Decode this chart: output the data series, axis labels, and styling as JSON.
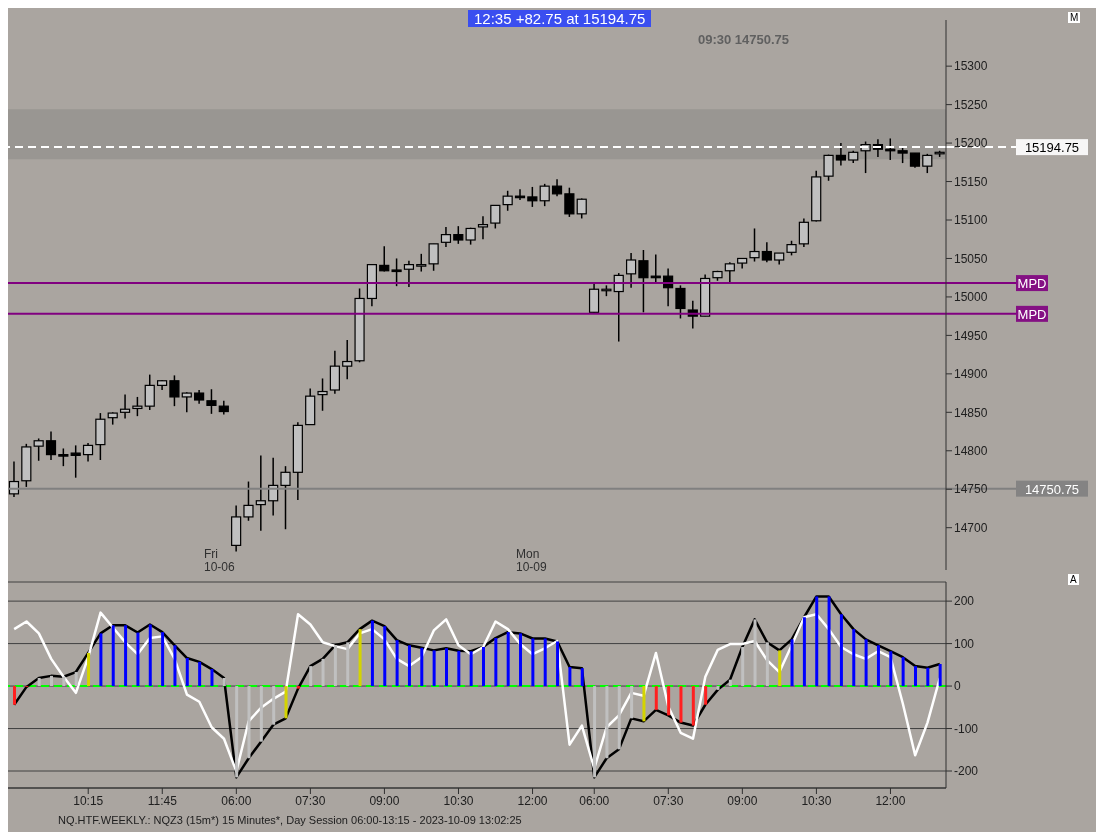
{
  "chart_data": [
    {
      "type": "candlestick",
      "categories": [
        null,
        null,
        null,
        null,
        null,
        null,
        "10:15",
        null,
        null,
        null,
        null,
        null,
        "11:45",
        null,
        null,
        null,
        null,
        null,
        "06:00",
        null,
        null,
        null,
        null,
        null,
        "07:30",
        null,
        null,
        null,
        null,
        null,
        "09:00",
        null,
        null,
        null,
        null,
        null,
        "10:30",
        null,
        null,
        null,
        null,
        null,
        "12:00",
        null,
        null,
        null,
        null,
        "06:00",
        null,
        null,
        null,
        null,
        null,
        "07:30",
        null,
        null,
        null,
        null,
        null,
        "09:00",
        null,
        null,
        null,
        null,
        null,
        "10:30",
        null,
        null,
        null,
        null,
        null,
        "12:00",
        null,
        null,
        null,
        null
      ],
      "ohlc": [
        [
          14744,
          14786,
          14740,
          14760
        ],
        [
          14761,
          14809,
          14753,
          14805
        ],
        [
          14806,
          14816,
          14787,
          14813
        ],
        [
          14813,
          14825,
          14788,
          14795
        ],
        [
          14795,
          14803,
          14780,
          14794
        ],
        [
          14797,
          14807,
          14765,
          14794
        ],
        [
          14795,
          14810,
          14786,
          14807
        ],
        [
          14808,
          14849,
          14788,
          14841
        ],
        [
          14843,
          14850,
          14834,
          14849
        ],
        [
          14850,
          14873,
          14842,
          14854
        ],
        [
          14855,
          14870,
          14845,
          14858
        ],
        [
          14858,
          14899,
          14853,
          14885
        ],
        [
          14885,
          14892,
          14879,
          14891
        ],
        [
          14891,
          14898,
          14858,
          14870
        ],
        [
          14870,
          14876,
          14850,
          14875
        ],
        [
          14875,
          14879,
          14861,
          14866
        ],
        [
          14865,
          14880,
          14848,
          14859
        ],
        [
          14858,
          14865,
          14847,
          14851
        ],
        [
          14677,
          14729,
          14669,
          14714
        ],
        [
          14714,
          14760,
          14709,
          14729
        ],
        [
          14730,
          14794,
          14696,
          14735
        ],
        [
          14735,
          14791,
          14716,
          14755
        ],
        [
          14755,
          14780,
          14698,
          14772
        ],
        [
          14772,
          14837,
          14736,
          14833
        ],
        [
          14834,
          14881,
          14834,
          14871
        ],
        [
          14873,
          14894,
          14852,
          14877
        ],
        [
          14879,
          14930,
          14874,
          14910
        ],
        [
          14910,
          14944,
          14893,
          14916
        ],
        [
          14917,
          15011,
          14915,
          14998
        ],
        [
          14998,
          15042,
          14988,
          15042
        ],
        [
          15041,
          15066,
          15033,
          15034
        ],
        [
          15035,
          15050,
          15014,
          15034
        ],
        [
          15036,
          15047,
          15013,
          15042
        ],
        [
          15040,
          15056,
          15033,
          15042
        ],
        [
          15043,
          15069,
          15034,
          15069
        ],
        [
          15071,
          15091,
          15065,
          15081
        ],
        [
          15081,
          15092,
          15069,
          15074
        ],
        [
          15074,
          15090,
          15068,
          15089
        ],
        [
          15091,
          15105,
          15075,
          15094
        ],
        [
          15096,
          15119,
          15089,
          15119
        ],
        [
          15120,
          15138,
          15112,
          15131
        ],
        [
          15131,
          15140,
          15126,
          15130
        ],
        [
          15130,
          15143,
          15117,
          15125
        ],
        [
          15125,
          15147,
          15118,
          15144
        ],
        [
          15144,
          15153,
          15131,
          15134
        ],
        [
          15134,
          15142,
          15104,
          15108
        ],
        [
          15108,
          15128,
          15102,
          15127
        ],
        [
          14980,
          15018,
          14979,
          15010
        ],
        [
          15010,
          15015,
          15001,
          15010
        ],
        [
          15007,
          15031,
          14942,
          15028
        ],
        [
          15030,
          15057,
          15012,
          15048
        ],
        [
          15047,
          15061,
          14980,
          15025
        ],
        [
          15027,
          15055,
          15018,
          15025
        ],
        [
          15027,
          15037,
          14988,
          15012
        ],
        [
          15011,
          15015,
          14972,
          14985
        ],
        [
          14983,
          14995,
          14959,
          14975
        ],
        [
          14975,
          15029,
          14975,
          15024
        ],
        [
          15025,
          15034,
          15021,
          15033
        ],
        [
          15034,
          15045,
          15017,
          15043
        ],
        [
          15044,
          15050,
          15037,
          15050
        ],
        [
          15051,
          15089,
          15046,
          15059
        ],
        [
          15059,
          15071,
          15045,
          15048
        ],
        [
          15048,
          15057,
          15042,
          15057
        ],
        [
          15058,
          15073,
          15054,
          15068
        ],
        [
          15069,
          15102,
          15065,
          15097
        ],
        [
          15099,
          15164,
          15098,
          15156
        ],
        [
          15157,
          15185,
          15151,
          15184
        ],
        [
          15184,
          15200,
          15171,
          15178
        ],
        [
          15178,
          15190,
          15174,
          15188
        ],
        [
          15190,
          15202,
          15161,
          15198
        ],
        [
          15198,
          15205,
          15182,
          15192
        ],
        [
          15192,
          15206,
          15178,
          15190
        ],
        [
          15190,
          15194,
          15174,
          15187
        ],
        [
          15187,
          15187,
          15168,
          15170
        ],
        [
          15170,
          15186,
          15161,
          15184
        ],
        [
          15188,
          15190,
          15182,
          15188
        ]
      ],
      "colors": [
        "#c0c0c0",
        "#c0c0c0",
        "#c0c0c0",
        "#000000",
        "#000000",
        "#000000",
        "#c0c0c0",
        "#c0c0c0",
        "#c0c0c0",
        "#c0c0c0",
        "#c0c0c0",
        "#c0c0c0",
        "#c0c0c0",
        "#000000",
        "#c0c0c0",
        "#000000",
        "#000000",
        "#000000",
        "#c0c0c0",
        "#c0c0c0",
        "#c0c0c0",
        "#c0c0c0",
        "#c0c0c0",
        "#c0c0c0",
        "#c0c0c0",
        "#c0c0c0",
        "#c0c0c0",
        "#c0c0c0",
        "#c0c0c0",
        "#c0c0c0",
        "#000000",
        "#000000",
        "#c0c0c0",
        "#c0c0c0",
        "#c0c0c0",
        "#c0c0c0",
        "#000000",
        "#c0c0c0",
        "#c0c0c0",
        "#c0c0c0",
        "#c0c0c0",
        "#000000",
        "#000000",
        "#c0c0c0",
        "#000000",
        "#000000",
        "#c0c0c0",
        "#c0c0c0",
        "#c0c0c0",
        "#c0c0c0",
        "#c0c0c0",
        "#000000",
        "#000000",
        "#000000",
        "#000000",
        "#000000",
        "#c0c0c0",
        "#c0c0c0",
        "#c0c0c0",
        "#c0c0c0",
        "#c0c0c0",
        "#000000",
        "#c0c0c0",
        "#c0c0c0",
        "#c0c0c0",
        "#c0c0c0",
        "#c0c0c0",
        "#000000",
        "#c0c0c0",
        "#c0c0c0",
        "#000000",
        "#000000",
        "#000000",
        "#000000",
        "#c0c0c0",
        "#c0c0c0"
      ],
      "ylim": [
        14645,
        15360
      ],
      "yticks": [
        14700,
        14750,
        14800,
        14850,
        14900,
        14950,
        15000,
        15050,
        15100,
        15150,
        15200,
        15250,
        15300
      ],
      "tick_labels": "y",
      "ref_lines": [
        {
          "axis": "y",
          "value": 15194.75,
          "label": "15194.75",
          "color": "#ffffff",
          "line_style": "dashed"
        },
        {
          "axis": "y",
          "value": 15018,
          "label": "MPD",
          "color": "#800080"
        },
        {
          "axis": "y",
          "value": 14978,
          "label": "MPD",
          "color": "#800080"
        },
        {
          "axis": "y",
          "value": 14750.75,
          "label": "14750.75",
          "color": "#808080"
        }
      ],
      "bands": [
        {
          "axis": "y",
          "from": 15179,
          "to": 15244,
          "color": "#8a8a86"
        }
      ],
      "annotations": [
        "12:35  +82.75 at 15194.75",
        "09:30 14750.75",
        "Fri 10-06",
        "Mon 10-09",
        "NQ.HTF.WEEKLY.: NQZ3 (15m*) 15 Minutes*, Day Session 06:00-13:15 - 2023-10-09 13:02:25",
        "M",
        "A"
      ]
    },
    {
      "type": "bar",
      "categories": [
        null,
        null,
        null,
        null,
        null,
        null,
        "10:15",
        null,
        null,
        null,
        null,
        null,
        "11:45",
        null,
        null,
        null,
        null,
        null,
        "06:00",
        null,
        null,
        null,
        null,
        null,
        "07:30",
        null,
        null,
        null,
        null,
        null,
        "09:00",
        null,
        null,
        null,
        null,
        null,
        "10:30",
        null,
        null,
        null,
        null,
        null,
        "12:00",
        null,
        null,
        null,
        null,
        "06:00",
        null,
        null,
        null,
        null,
        null,
        "07:30",
        null,
        null,
        null,
        null,
        null,
        "09:00",
        null,
        null,
        null,
        null,
        null,
        "10:30",
        null,
        null,
        null,
        null,
        null,
        "12:00",
        null,
        null,
        null,
        null
      ],
      "series": [
        {
          "type": "bar",
          "colors": [
            "#ff2020",
            "#ff2020",
            "#c0c0c0",
            "#c0c0c0",
            "#c0c0c0",
            "#c0c0c0",
            "#d4d400",
            "#0000ff",
            "#0000ff",
            "#0000ff",
            "#0000ff",
            "#0000ff",
            "#0000ff",
            "#0000ff",
            "#0000ff",
            "#0000ff",
            "#0000ff",
            "#c0c0c0",
            "#c0c0c0",
            "#c0c0c0",
            "#c0c0c0",
            "#c0c0c0",
            "#d4d400",
            "#ff2020",
            "#c0c0c0",
            "#c0c0c0",
            "#c0c0c0",
            "#c0c0c0",
            "#d4d400",
            "#0000ff",
            "#0000ff",
            "#0000ff",
            "#0000ff",
            "#0000ff",
            "#0000ff",
            "#0000ff",
            "#0000ff",
            "#0000ff",
            "#0000ff",
            "#0000ff",
            "#0000ff",
            "#0000ff",
            "#0000ff",
            "#0000ff",
            "#0000ff",
            "#0000ff",
            "#0000ff",
            "#c0c0c0",
            "#c0c0c0",
            "#c0c0c0",
            "#c0c0c0",
            "#d4d400",
            "#ff2020",
            "#ff2020",
            "#ff2020",
            "#ff2020",
            "#ff2020",
            "#c0c0c0",
            "#c0c0c0",
            "#c0c0c0",
            "#c0c0c0",
            "#c0c0c0",
            "#d4d400",
            "#0000ff",
            "#0000ff",
            "#0000ff",
            "#0000ff",
            "#0000ff",
            "#0000ff",
            "#0000ff",
            "#0000ff",
            "#0000ff",
            "#0000ff",
            "#0000ff",
            "#0000ff",
            "#0000ff"
          ],
          "values": [
            -44,
            -2,
            19,
            24,
            22,
            33,
            78,
            124,
            143,
            143,
            126,
            145,
            127,
            96,
            66,
            57,
            40,
            19,
            -215,
            -170,
            -131,
            -91,
            -76,
            -6,
            47,
            64,
            96,
            103,
            134,
            154,
            141,
            108,
            96,
            90,
            84,
            89,
            83,
            82,
            92,
            113,
            127,
            124,
            112,
            112,
            105,
            45,
            42,
            -215,
            -170,
            -149,
            -76,
            -83,
            -56,
            -69,
            -86,
            -93,
            -44,
            -9,
            15,
            92,
            157,
            103,
            84,
            110,
            162,
            211,
            211,
            169,
            134,
            110,
            96,
            82,
            68,
            47,
            43,
            52
          ]
        },
        {
          "type": "line",
          "color": "#000000",
          "values": [
            -44,
            -2,
            19,
            24,
            22,
            33,
            78,
            124,
            143,
            143,
            126,
            145,
            127,
            96,
            66,
            57,
            40,
            19,
            -215,
            -170,
            -131,
            -91,
            -76,
            -6,
            47,
            64,
            96,
            103,
            134,
            154,
            141,
            108,
            96,
            90,
            84,
            89,
            83,
            82,
            92,
            113,
            127,
            124,
            112,
            112,
            105,
            45,
            42,
            -215,
            -170,
            -149,
            -76,
            -83,
            -56,
            -69,
            -86,
            -93,
            -44,
            -9,
            15,
            92,
            157,
            103,
            84,
            110,
            162,
            211,
            211,
            169,
            134,
            110,
            96,
            82,
            68,
            47,
            43,
            52
          ]
        },
        {
          "type": "line",
          "color": "#ffffff",
          "values": [
            134,
            152,
            124,
            64,
            22,
            -16,
            68,
            173,
            138,
            103,
            75,
            113,
            117,
            64,
            -20,
            -37,
            -97,
            -124,
            -201,
            -83,
            -51,
            -30,
            -13,
            169,
            145,
            103,
            94,
            87,
            124,
            134,
            110,
            64,
            47,
            68,
            131,
            157,
            96,
            75,
            92,
            152,
            134,
            99,
            75,
            89,
            106,
            -138,
            -93,
            -194,
            -97,
            -69,
            -16,
            -23,
            78,
            -48,
            -110,
            -124,
            22,
            85,
            99,
            99,
            106,
            61,
            33,
            96,
            162,
            169,
            134,
            92,
            75,
            64,
            82,
            68,
            -41,
            -163,
            -86,
            19
          ]
        }
      ],
      "ylim": [
        -240,
        245
      ],
      "yticks": [
        -200,
        -100,
        0,
        100,
        200
      ],
      "grid": "y",
      "ref_lines": [
        {
          "axis": "y",
          "value": 0,
          "color": "#00ff00",
          "line_style": "dashed"
        }
      ]
    }
  ]
}
